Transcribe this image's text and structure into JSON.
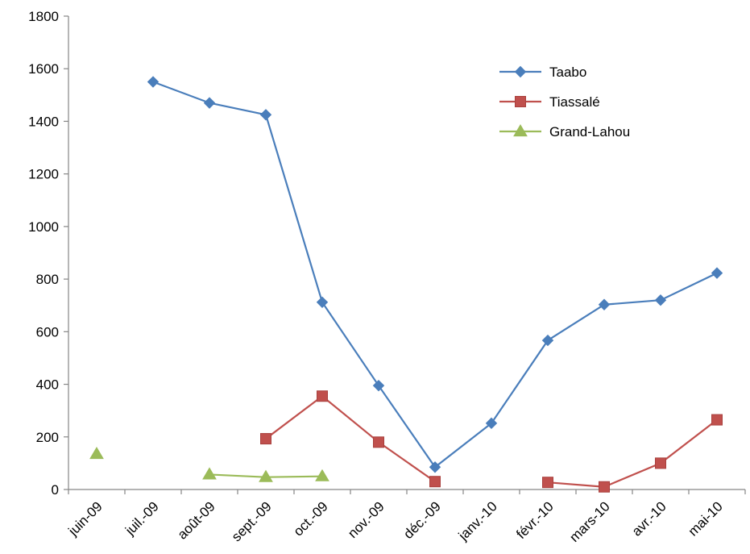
{
  "chart_data": {
    "type": "line",
    "categories": [
      "juin-09",
      "juil.-09",
      "août-09",
      "sept.-09",
      "oct.-09",
      "nov.-09",
      "déc.-09",
      "janv.-10",
      "févr.-10",
      "mars-10",
      "avr.-10",
      "mai-10"
    ],
    "ylim": [
      0,
      1800
    ],
    "yticks": [
      0,
      200,
      400,
      600,
      800,
      1000,
      1200,
      1400,
      1600,
      1800
    ],
    "grid": false,
    "legend_position": "top-right",
    "series": [
      {
        "name": "Taabo",
        "color": "#4a7ebb",
        "marker": "diamond",
        "values": [
          null,
          1550,
          1470,
          1425,
          712,
          395,
          85,
          252,
          567,
          703,
          720,
          823
        ]
      },
      {
        "name": "Tiassalé",
        "color": "#c0504d",
        "marker": "square",
        "values": [
          null,
          null,
          null,
          193,
          355,
          180,
          30,
          null,
          27,
          10,
          100,
          265
        ]
      },
      {
        "name": "Grand-Lahou",
        "color": "#9bbb59",
        "marker": "triangle",
        "values": [
          135,
          null,
          57,
          47,
          50,
          null,
          null,
          null,
          null,
          null,
          null,
          null
        ]
      }
    ]
  }
}
